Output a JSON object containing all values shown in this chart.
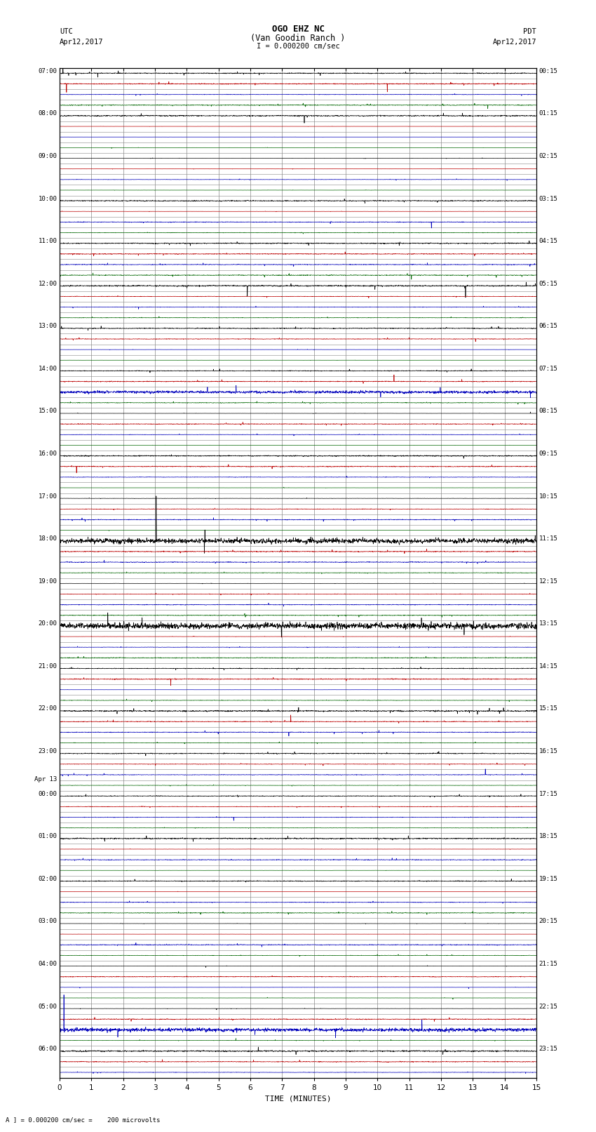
{
  "title_line1": "OGO EHZ NC",
  "title_line2": "(Van Goodin Ranch )",
  "title_line3": "I = 0.000200 cm/sec",
  "label_left_header1": "UTC",
  "label_left_header2": "Apr12,2017",
  "label_right_header1": "PDT",
  "label_right_header2": "Apr12,2017",
  "xlabel": "TIME (MINUTES)",
  "footer": "A ] = 0.000200 cm/sec =    200 microvolts",
  "xlim": [
    0,
    15
  ],
  "colors": [
    "#000000",
    "#bb0000",
    "#0000bb",
    "#006600"
  ],
  "bg_color": "#ffffff",
  "grid_color": "#888888",
  "utc_times": [
    "07:00",
    "",
    "",
    "",
    "08:00",
    "",
    "",
    "",
    "09:00",
    "",
    "",
    "",
    "10:00",
    "",
    "",
    "",
    "11:00",
    "",
    "",
    "",
    "12:00",
    "",
    "",
    "",
    "13:00",
    "",
    "",
    "",
    "14:00",
    "",
    "",
    "",
    "15:00",
    "",
    "",
    "",
    "16:00",
    "",
    "",
    "",
    "17:00",
    "",
    "",
    "",
    "18:00",
    "",
    "",
    "",
    "19:00",
    "",
    "",
    "",
    "20:00",
    "",
    "",
    "",
    "21:00",
    "",
    "",
    "",
    "22:00",
    "",
    "",
    "",
    "23:00",
    "",
    "",
    "",
    "Apr 13\n00:00",
    "",
    "",
    "",
    "01:00",
    "",
    "",
    "",
    "02:00",
    "",
    "",
    "",
    "03:00",
    "",
    "",
    "",
    "04:00",
    "",
    "",
    "",
    "05:00",
    "",
    "",
    "",
    "06:00",
    "",
    ""
  ],
  "pdt_times": [
    "00:15",
    "",
    "",
    "",
    "01:15",
    "",
    "",
    "",
    "02:15",
    "",
    "",
    "",
    "03:15",
    "",
    "",
    "",
    "04:15",
    "",
    "",
    "",
    "05:15",
    "",
    "",
    "",
    "06:15",
    "",
    "",
    "",
    "07:15",
    "",
    "",
    "",
    "08:15",
    "",
    "",
    "",
    "09:15",
    "",
    "",
    "",
    "10:15",
    "",
    "",
    "",
    "11:15",
    "",
    "",
    "",
    "12:15",
    "",
    "",
    "",
    "13:15",
    "",
    "",
    "",
    "14:15",
    "",
    "",
    "",
    "15:15",
    "",
    "",
    "",
    "16:15",
    "",
    "",
    "",
    "17:15",
    "",
    "",
    "",
    "18:15",
    "",
    "",
    "",
    "19:15",
    "",
    "",
    "",
    "20:15",
    "",
    "",
    "",
    "21:15",
    "",
    "",
    "",
    "22:15",
    "",
    "",
    "",
    "23:15",
    "",
    ""
  ],
  "fig_width": 8.5,
  "fig_height": 16.13,
  "noise_seed": 42
}
